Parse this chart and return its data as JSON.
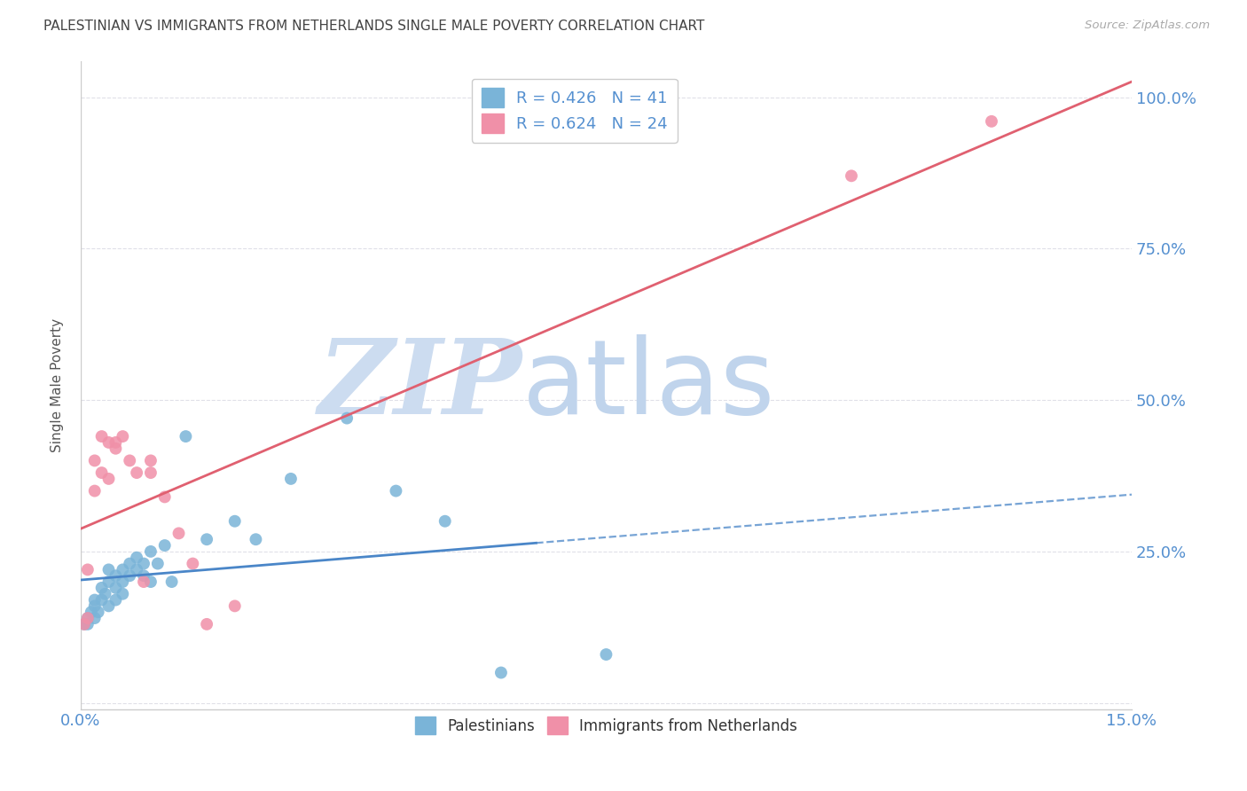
{
  "title": "PALESTINIAN VS IMMIGRANTS FROM NETHERLANDS SINGLE MALE POVERTY CORRELATION CHART",
  "source": "Source: ZipAtlas.com",
  "ylabel": "Single Male Poverty",
  "xmin": 0.0,
  "xmax": 0.15,
  "ymin": -0.01,
  "ymax": 1.06,
  "ytick_vals": [
    0.0,
    0.25,
    0.5,
    0.75,
    1.0
  ],
  "right_ytick_labels": [
    "",
    "25.0%",
    "50.0%",
    "75.0%",
    "100.0%"
  ],
  "left_ytick_labels": [
    "",
    "",
    "",
    "",
    ""
  ],
  "xtick_vals": [
    0.0,
    0.15
  ],
  "xtick_labels": [
    "0.0%",
    "15.0%"
  ],
  "palestinians_x": [
    0.0005,
    0.001,
    0.001,
    0.0015,
    0.002,
    0.002,
    0.002,
    0.0025,
    0.003,
    0.003,
    0.0035,
    0.004,
    0.004,
    0.004,
    0.005,
    0.005,
    0.005,
    0.006,
    0.006,
    0.006,
    0.007,
    0.007,
    0.008,
    0.008,
    0.009,
    0.009,
    0.01,
    0.01,
    0.011,
    0.012,
    0.013,
    0.015,
    0.018,
    0.022,
    0.025,
    0.03,
    0.038,
    0.045,
    0.052,
    0.06,
    0.075
  ],
  "palestinians_y": [
    0.13,
    0.13,
    0.14,
    0.15,
    0.14,
    0.16,
    0.17,
    0.15,
    0.17,
    0.19,
    0.18,
    0.16,
    0.2,
    0.22,
    0.17,
    0.19,
    0.21,
    0.18,
    0.2,
    0.22,
    0.21,
    0.23,
    0.22,
    0.24,
    0.21,
    0.23,
    0.2,
    0.25,
    0.23,
    0.26,
    0.2,
    0.44,
    0.27,
    0.3,
    0.27,
    0.37,
    0.47,
    0.35,
    0.3,
    0.05,
    0.08
  ],
  "netherlands_x": [
    0.0005,
    0.001,
    0.001,
    0.002,
    0.002,
    0.003,
    0.003,
    0.004,
    0.004,
    0.005,
    0.005,
    0.006,
    0.007,
    0.008,
    0.009,
    0.01,
    0.01,
    0.012,
    0.014,
    0.016,
    0.018,
    0.022,
    0.11,
    0.13
  ],
  "netherlands_y": [
    0.13,
    0.14,
    0.22,
    0.35,
    0.4,
    0.38,
    0.44,
    0.37,
    0.43,
    0.42,
    0.43,
    0.44,
    0.4,
    0.38,
    0.2,
    0.4,
    0.38,
    0.34,
    0.28,
    0.23,
    0.13,
    0.16,
    0.87,
    0.96
  ],
  "blue_scatter_color": "#7ab4d8",
  "pink_scatter_color": "#f090a8",
  "blue_line_color": "#4a86c8",
  "pink_line_color": "#e06070",
  "blue_line_solid_xmax": 0.065,
  "background_color": "#ffffff",
  "grid_color": "#e0e0e8",
  "tick_color": "#5590d0",
  "title_color": "#444444",
  "source_color": "#aaaaaa"
}
